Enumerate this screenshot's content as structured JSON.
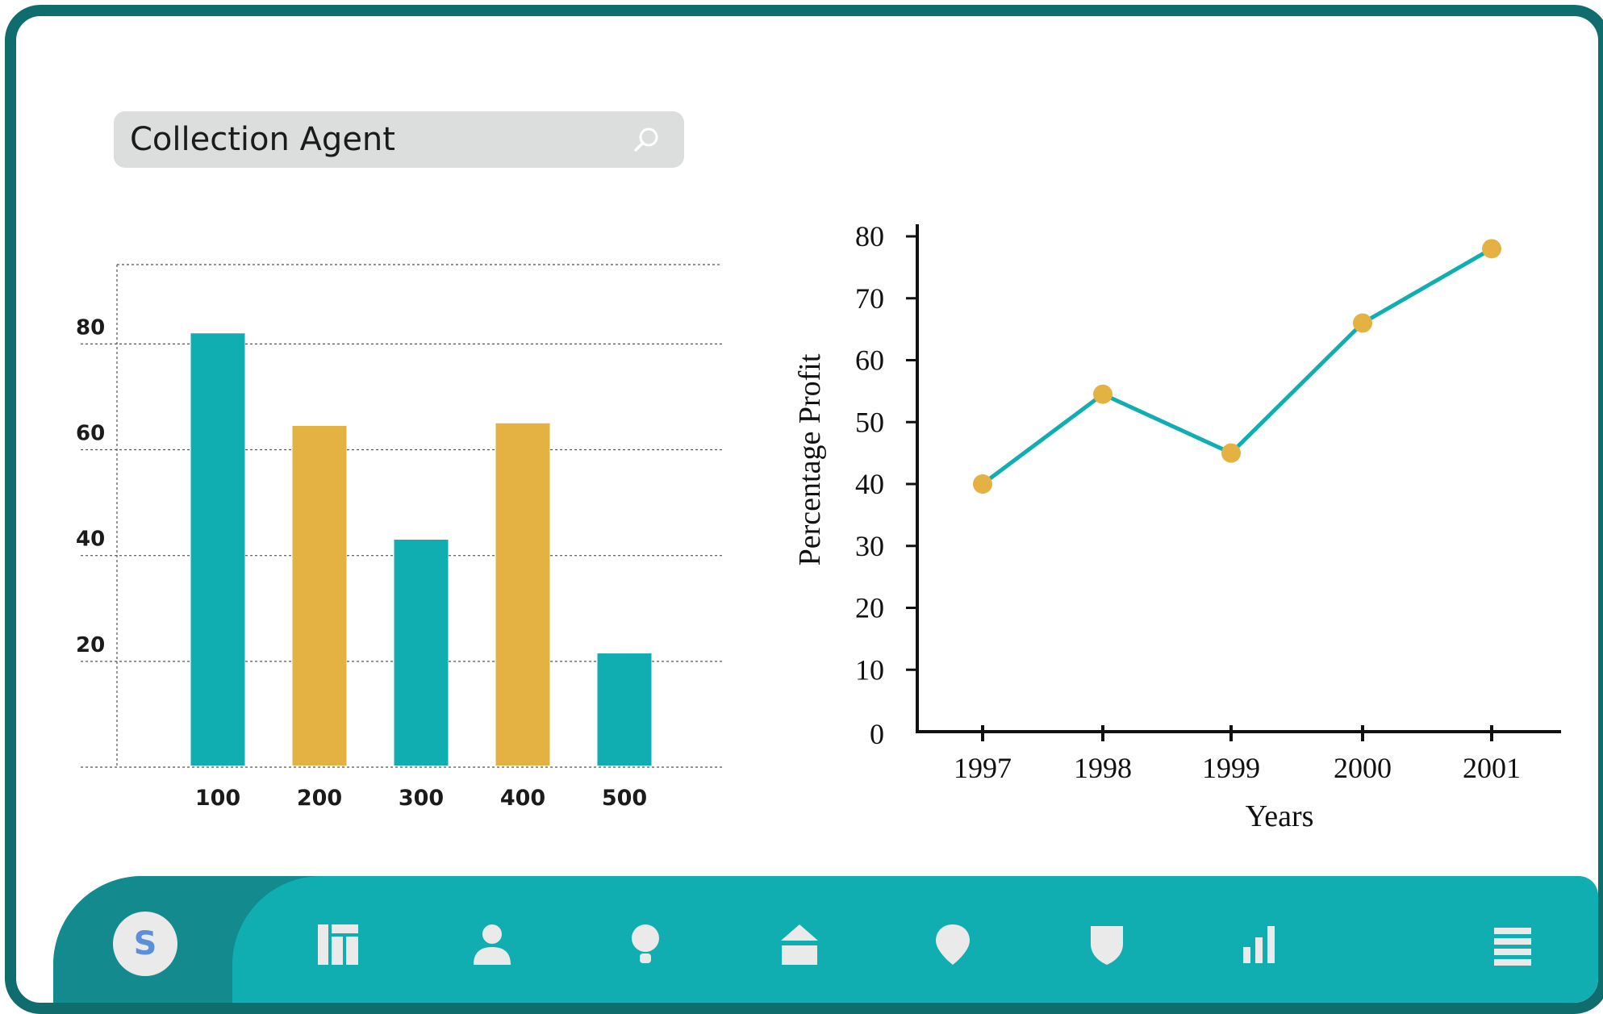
{
  "search": {
    "value": "Collection Agent"
  },
  "bar_chart": {
    "y_ticks": [
      "80",
      "60",
      "40",
      "20"
    ],
    "categories": [
      "100",
      "200",
      "300",
      "400",
      "500"
    ]
  },
  "line_chart": {
    "ylabel": "Percentage Profit",
    "xlabel": "Years",
    "y_ticks": [
      "0",
      "10",
      "20",
      "30",
      "40",
      "50",
      "60",
      "70",
      "80"
    ],
    "categories": [
      "1997",
      "1998",
      "1999",
      "2000",
      "2001"
    ]
  },
  "chart_data": [
    {
      "type": "bar",
      "categories": [
        "100",
        "200",
        "300",
        "400",
        "500"
      ],
      "values": [
        82,
        64.5,
        43,
        65,
        21.5
      ],
      "colors": [
        "#11aeb1",
        "#e3b243",
        "#11aeb1",
        "#e3b243",
        "#11aeb1"
      ],
      "ylim": [
        0,
        95
      ],
      "yticks": [
        20,
        40,
        60,
        80
      ],
      "grid": true,
      "title": "",
      "xlabel": "",
      "ylabel": ""
    },
    {
      "type": "line",
      "categories": [
        "1997",
        "1998",
        "1999",
        "2000",
        "2001"
      ],
      "values": [
        40,
        54.5,
        45,
        66,
        78
      ],
      "ylim": [
        0,
        80
      ],
      "yticks": [
        0,
        10,
        20,
        30,
        40,
        50,
        60,
        70,
        80
      ],
      "xlabel": "Years",
      "ylabel": "Percentage Profit",
      "line_color": "#11aeb1",
      "marker_color": "#e3b243",
      "grid": false,
      "title": ""
    }
  ],
  "navbar": {
    "avatar_letter": "S",
    "items": [
      {
        "icon": "dashboard-icon"
      },
      {
        "icon": "user-icon"
      },
      {
        "icon": "lightbulb-icon"
      },
      {
        "icon": "home-icon"
      },
      {
        "icon": "location-pin-icon"
      },
      {
        "icon": "shield-icon"
      },
      {
        "icon": "bar-chart-icon"
      },
      {
        "icon": "menu-icon"
      }
    ]
  },
  "colors": {
    "frame": "#0f6d6e",
    "teal": "#11aeb1",
    "teal_dark": "#128a8e",
    "gold": "#e3b243",
    "search_bg": "#dcdddd"
  }
}
